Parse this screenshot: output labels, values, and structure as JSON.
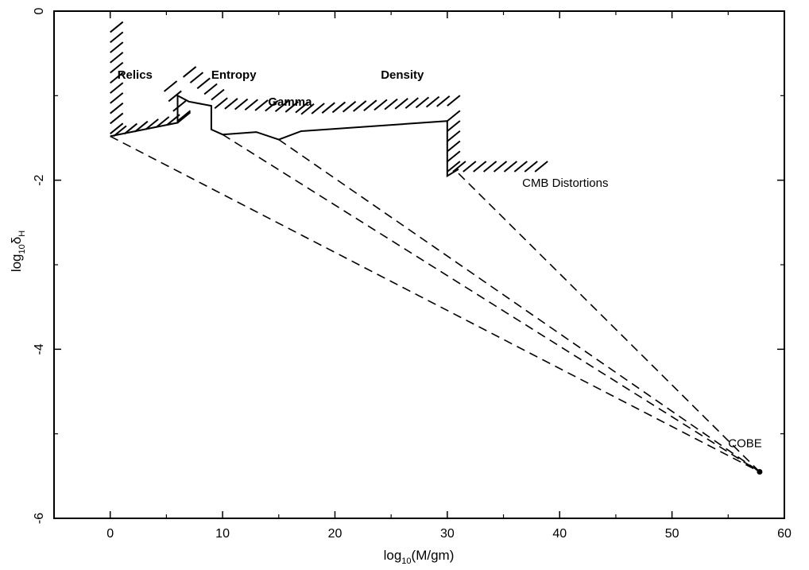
{
  "chart_data": {
    "type": "line",
    "xlabel_main": "log",
    "xlabel_sub": "10",
    "xlabel_tail": "(M/gm)",
    "ylabel_main": "log",
    "ylabel_sub": "10",
    "ylabel_tail": "δ",
    "ylabel_tail_sub": "H",
    "xlim": [
      -5,
      60
    ],
    "ylim": [
      -6,
      0
    ],
    "xticks": [
      0,
      10,
      20,
      30,
      40,
      50,
      60
    ],
    "xtick_labels": [
      "0",
      "10",
      "20",
      "30",
      "40",
      "50",
      "60"
    ],
    "yticks": [
      0,
      -2,
      -4,
      -6
    ],
    "ytick_labels": [
      "0",
      "-2",
      "-4",
      "-6"
    ],
    "grid": false,
    "legend": "none",
    "series": [
      {
        "style": "solid",
        "points": [
          [
            0,
            -1.48
          ],
          [
            6,
            -1.32
          ],
          [
            6,
            -1.0
          ],
          [
            7,
            -1.07
          ],
          [
            9,
            -1.12
          ],
          [
            9,
            -1.4
          ],
          [
            10,
            -1.46
          ],
          [
            13,
            -1.43
          ],
          [
            15,
            -1.52
          ],
          [
            17,
            -1.42
          ],
          [
            30,
            -1.3
          ],
          [
            30,
            -1.95
          ],
          [
            31,
            -1.87
          ]
        ]
      },
      {
        "style": "dashed",
        "points": [
          [
            0,
            -1.48
          ],
          [
            57.8,
            -5.45
          ]
        ]
      },
      {
        "style": "dashed",
        "points": [
          [
            10,
            -1.46
          ],
          [
            57.8,
            -5.45
          ]
        ]
      },
      {
        "style": "dashed",
        "points": [
          [
            15,
            -1.52
          ],
          [
            57.8,
            -5.45
          ]
        ]
      },
      {
        "style": "dashed",
        "points": [
          [
            31,
            -1.92
          ],
          [
            57.8,
            -5.45
          ]
        ]
      }
    ],
    "hatch_segments": [
      [
        [
          0,
          -0.25
        ],
        [
          0,
          -1.45
        ]
      ],
      [
        [
          0.3,
          -1.48
        ],
        [
          6,
          -1.32
        ]
      ],
      [
        [
          4.8,
          -0.95
        ],
        [
          6,
          -1.3
        ]
      ],
      [
        [
          6.5,
          -0.78
        ],
        [
          9,
          -1.05
        ]
      ],
      [
        [
          9.3,
          -1.15
        ],
        [
          16.5,
          -1.2
        ]
      ],
      [
        [
          17,
          -1.22
        ],
        [
          30,
          -1.12
        ]
      ],
      [
        [
          30,
          -1.3
        ],
        [
          30,
          -1.9
        ]
      ],
      [
        [
          30.5,
          -1.9
        ],
        [
          37.8,
          -1.9
        ]
      ]
    ],
    "annotations": [
      {
        "text": "Relics",
        "x": 2.2,
        "y": -0.8,
        "bold": true
      },
      {
        "text": "Entropy",
        "x": 11,
        "y": -0.8,
        "bold": true
      },
      {
        "text": "Gamma",
        "x": 16,
        "y": -1.12,
        "bold": true
      },
      {
        "text": "Density",
        "x": 26,
        "y": -0.8,
        "bold": true
      },
      {
        "text": "CMB Distortions",
        "x": 40.5,
        "y": -2.08,
        "bold": false
      },
      {
        "text": "COBE",
        "x": 56.5,
        "y": -5.16,
        "bold": false
      }
    ],
    "marker": {
      "name": "COBE",
      "x": 57.8,
      "y": -5.45
    }
  }
}
